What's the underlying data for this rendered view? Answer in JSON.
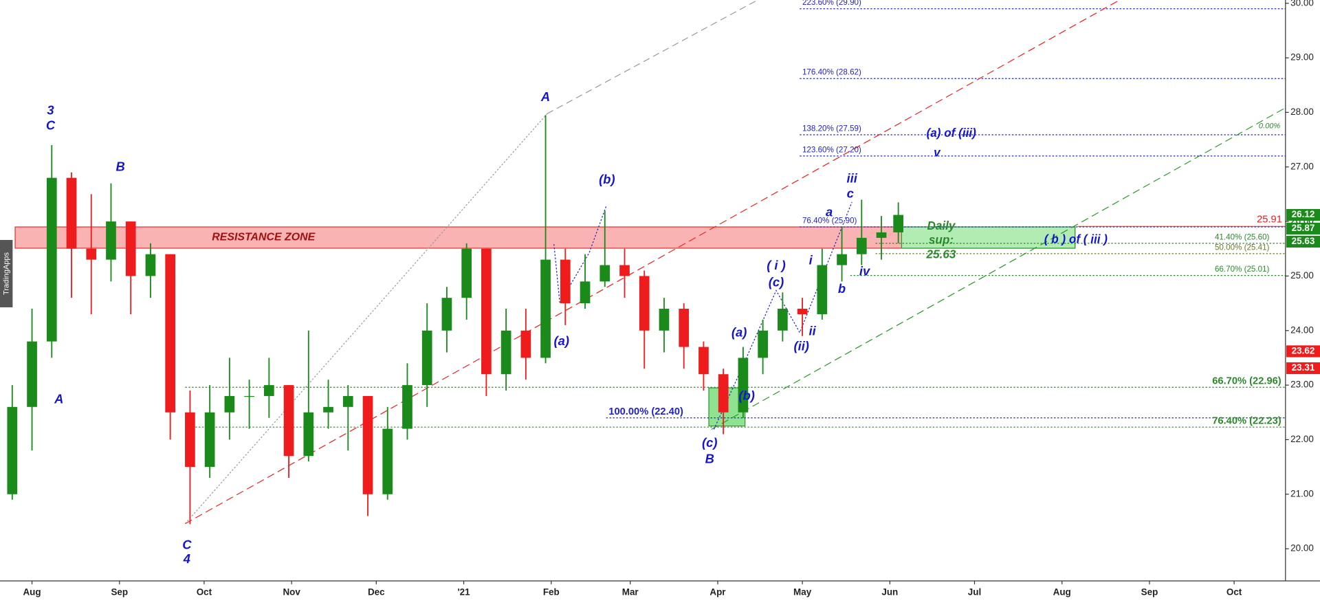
{
  "chart_data": {
    "type": "candlestick",
    "watermark": "TradingApps",
    "x": [
      -7,
      0,
      7,
      14,
      21,
      28,
      35,
      42,
      49,
      56,
      63,
      70,
      77,
      84,
      91,
      98,
      105,
      112,
      119,
      126,
      133,
      140,
      147,
      154,
      161,
      168,
      175,
      182,
      189,
      196,
      203,
      210,
      217,
      224,
      231,
      238,
      245,
      252,
      259,
      266,
      273,
      280,
      287,
      294,
      301,
      307
    ],
    "open": [
      21.0,
      22.6,
      23.8,
      26.8,
      25.5,
      25.3,
      26.0,
      25.0,
      25.4,
      22.5,
      21.5,
      22.5,
      22.8,
      22.8,
      23.0,
      21.7,
      22.5,
      22.6,
      22.8,
      21.0,
      22.2,
      23.0,
      24.0,
      24.6,
      25.5,
      23.2,
      24.0,
      23.5,
      25.3,
      24.5,
      24.9,
      25.2,
      25.0,
      24.0,
      24.4,
      23.7,
      23.2,
      22.5,
      23.5,
      24.0,
      24.4,
      24.3,
      25.2,
      25.4,
      25.7,
      25.8
    ],
    "high": [
      23.0,
      24.4,
      27.4,
      26.9,
      26.5,
      26.7,
      26.0,
      25.6,
      25.4,
      22.9,
      23.0,
      23.5,
      23.1,
      23.5,
      23.0,
      24.0,
      23.1,
      23.0,
      22.8,
      22.6,
      23.4,
      24.5,
      24.8,
      25.6,
      25.5,
      24.4,
      24.4,
      27.95,
      25.5,
      25.4,
      26.2,
      25.5,
      25.1,
      24.6,
      24.5,
      23.8,
      23.3,
      23.7,
      24.2,
      24.7,
      24.6,
      25.5,
      25.9,
      26.4,
      26.1,
      26.35
    ],
    "low": [
      20.9,
      21.8,
      23.5,
      24.6,
      24.3,
      24.9,
      24.3,
      24.6,
      22.0,
      20.45,
      21.3,
      22.0,
      22.2,
      22.4,
      21.3,
      21.6,
      22.2,
      21.8,
      20.6,
      20.9,
      22.0,
      22.6,
      23.6,
      24.2,
      22.8,
      22.9,
      23.1,
      23.4,
      24.1,
      24.4,
      24.8,
      24.6,
      23.3,
      23.6,
      23.3,
      22.9,
      22.1,
      22.4,
      23.2,
      23.8,
      23.9,
      24.2,
      24.9,
      25.2,
      25.3,
      25.6
    ],
    "close": [
      22.6,
      23.8,
      26.8,
      25.5,
      25.3,
      26.0,
      25.0,
      25.4,
      22.5,
      21.5,
      22.5,
      22.8,
      22.8,
      23.0,
      21.7,
      22.5,
      22.6,
      22.8,
      21.0,
      22.2,
      23.0,
      24.0,
      24.6,
      25.5,
      23.2,
      24.0,
      23.5,
      25.3,
      24.5,
      24.9,
      25.2,
      25.0,
      24.0,
      24.4,
      23.7,
      23.2,
      22.5,
      23.5,
      24.0,
      24.4,
      24.3,
      25.2,
      25.4,
      25.7,
      25.8,
      26.12
    ],
    "up_color": "#1a8a1a",
    "down_color": "#ee1c1c",
    "xlim": [
      -11.34,
      444.2
    ],
    "ylim": [
      19.41,
      30.06
    ],
    "xticks": [
      {
        "value": 0,
        "label": "Aug"
      },
      {
        "value": 31,
        "label": "Sep"
      },
      {
        "value": 61,
        "label": "Oct"
      },
      {
        "value": 92,
        "label": "Nov"
      },
      {
        "value": 122,
        "label": "Dec"
      },
      {
        "value": 153,
        "label": "'21"
      },
      {
        "value": 184,
        "label": "Feb"
      },
      {
        "value": 212,
        "label": "Mar"
      },
      {
        "value": 243,
        "label": "Apr"
      },
      {
        "value": 273,
        "label": "May"
      },
      {
        "value": 304,
        "label": "Jun"
      },
      {
        "value": 334,
        "label": "Jul"
      },
      {
        "value": 365,
        "label": "Aug"
      },
      {
        "value": 396,
        "label": "Sep"
      },
      {
        "value": 426,
        "label": "Oct"
      }
    ],
    "yticks": [
      {
        "value": 20,
        "label": "20.00"
      },
      {
        "value": 21,
        "label": "21.00"
      },
      {
        "value": 22,
        "label": "22.00"
      },
      {
        "value": 23,
        "label": "23.00"
      },
      {
        "value": 24,
        "label": "24.00"
      },
      {
        "value": 25,
        "label": "25.00"
      },
      {
        "value": 26,
        "label": "26.00"
      },
      {
        "value": 27,
        "label": "27.00"
      },
      {
        "value": 28,
        "label": "28.00"
      },
      {
        "value": 29,
        "label": "29.00"
      },
      {
        "value": 30,
        "label": "30.00"
      }
    ],
    "levels": [
      {
        "value": 29.9,
        "label": "223.60% (29.90)",
        "color": "#2222cc"
      },
      {
        "value": 28.62,
        "label": "176.40% (28.62)",
        "color": "#2222cc"
      },
      {
        "value": 27.59,
        "label": "138.20% (27.59)",
        "color": "#2222cc"
      },
      {
        "value": 27.2,
        "label": "123.60% (27.20)",
        "color": "#2222cc"
      },
      {
        "value": 25.9,
        "label": "76.40% (25.90)",
        "color": "#2222cc"
      },
      {
        "value": 25.6,
        "label": "41.40% (25.60)",
        "color": "#2a8a2a"
      },
      {
        "value": 25.41,
        "label": "50.00% (25.41)",
        "color": "#6a7a2a"
      },
      {
        "value": 25.01,
        "label": "66.70% (25.01)",
        "color": "#2a8a2a"
      },
      {
        "value": 22.4,
        "label": "100.00% (22.40)",
        "color": "#2222cc"
      },
      {
        "value": 22.96,
        "label": "66.70% (22.96)",
        "color": "#2a8a2a"
      },
      {
        "value": 22.23,
        "label": "76.40% (22.23)",
        "color": "#2a8a2a"
      }
    ],
    "price_tags": [
      {
        "value": 26.12,
        "color": "#1a8a1a",
        "style": "box"
      },
      {
        "value": 25.87,
        "color": "#1a8a1a",
        "style": "box"
      },
      {
        "value": 25.63,
        "color": "#1a8a1a",
        "style": "box"
      },
      {
        "value": 23.62,
        "color": "#ee1c1c",
        "style": "box"
      },
      {
        "value": 23.31,
        "color": "#ee1c1c",
        "style": "box"
      },
      {
        "value": 25.91,
        "color": "#ee1c1c",
        "style": "text"
      }
    ],
    "resistance_zone": {
      "label": "RESISTANCE ZONE",
      "low": 25.51,
      "high": 25.9
    },
    "support_zone": {
      "label": [
        "Daily",
        "sup:",
        "25.63"
      ],
      "low": 25.51,
      "high": 25.9
    },
    "small_zone": {
      "low": 22.25,
      "high": 22.95
    },
    "annotations": [
      "3",
      "C",
      "A",
      "B",
      "C",
      "4",
      "A",
      "(b)",
      "(a)",
      "(c)",
      "B",
      "(a)",
      "(b)",
      "( i )",
      "(c)",
      "(ii)",
      "ii",
      "i",
      "a",
      "iii",
      "c",
      "b",
      "iv",
      "(a) of (iii)",
      "v",
      "( b ) of ( iii )",
      "0.00%"
    ]
  }
}
